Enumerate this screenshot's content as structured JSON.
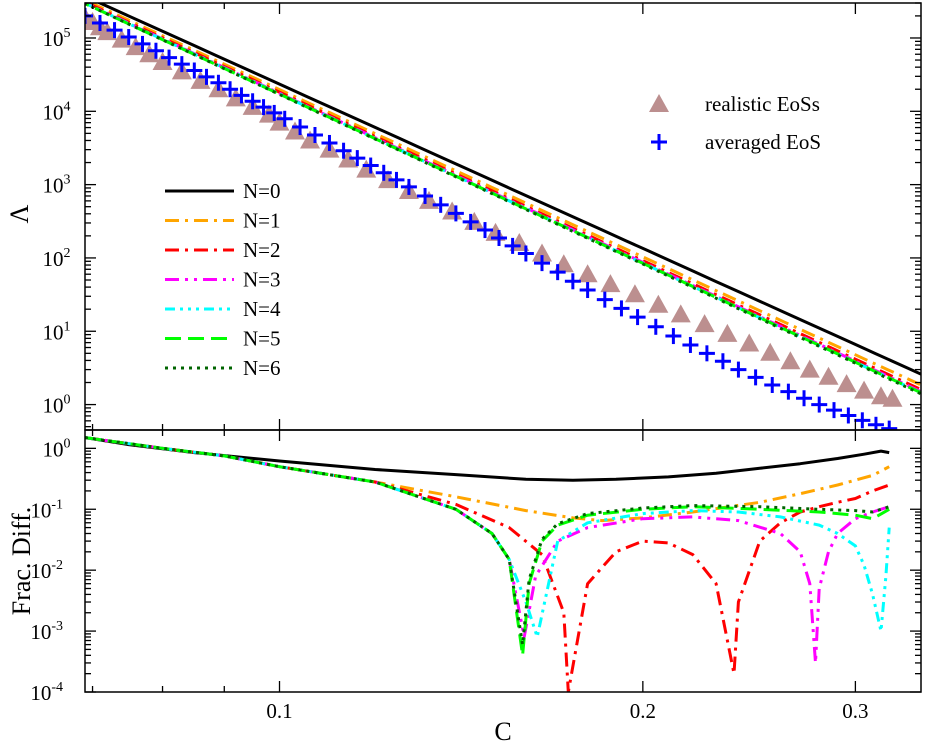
{
  "chart_data": [
    {
      "type": "line",
      "panel": "top",
      "xlabel": "",
      "ylabel": "Λ",
      "xscale": "log",
      "yscale": "log",
      "xlim": [
        0.069,
        0.34
      ],
      "ylim": [
        0.45,
        300000
      ],
      "y_ticks": [
        1,
        10,
        100,
        1000,
        10000,
        100000
      ],
      "y_tick_labels": [
        {
          "base": "10",
          "exp": "0"
        },
        {
          "base": "10",
          "exp": "1"
        },
        {
          "base": "10",
          "exp": "2"
        },
        {
          "base": "10",
          "exp": "3"
        },
        {
          "base": "10",
          "exp": "4"
        },
        {
          "base": "10",
          "exp": "5"
        }
      ],
      "x_ticks": [
        0.1,
        0.2,
        0.3
      ],
      "legend_position": "center-left",
      "fits": [
        {
          "name": "N=0",
          "color": "#000000",
          "dash": "",
          "width": 3,
          "x": [
            0.06,
            0.34
          ],
          "y": [
            1050000,
            2.6
          ]
        },
        {
          "name": "N=1",
          "color": "#ffa500",
          "dash": "14,6,3,6",
          "width": 3,
          "x": [
            0.06,
            0.34
          ],
          "y": [
            950000,
            1.85
          ]
        },
        {
          "name": "N=2",
          "color": "#ff0000",
          "dash": "14,6,3,6",
          "width": 3,
          "x": [
            0.06,
            0.34
          ],
          "y": [
            900000,
            1.6
          ]
        },
        {
          "name": "N=3",
          "color": "#ff00ff",
          "dash": "14,6,3,6,3,6",
          "width": 3,
          "x": [
            0.06,
            0.34
          ],
          "y": [
            880000,
            1.5
          ]
        },
        {
          "name": "N=4",
          "color": "#00ffff",
          "dash": "10,5,3,5,3,5,3,5",
          "width": 3,
          "x": [
            0.06,
            0.34
          ],
          "y": [
            870000,
            1.45
          ]
        },
        {
          "name": "N=5",
          "color": "#00ff00",
          "dash": "16,7",
          "width": 3,
          "x": [
            0.06,
            0.34
          ],
          "y": [
            860000,
            1.45
          ]
        },
        {
          "name": "N=6",
          "color": "#006400",
          "dash": "3,5",
          "width": 3,
          "x": [
            0.06,
            0.34
          ],
          "y": [
            860000,
            1.4
          ]
        }
      ],
      "points": [
        {
          "name": "realistic EoSs",
          "marker": "triangle",
          "color": "#bc8f8f",
          "x": [
            0.069,
            0.07,
            0.071,
            0.072,
            0.074,
            0.076,
            0.078,
            0.08,
            0.083,
            0.086,
            0.089,
            0.092,
            0.095,
            0.098,
            0.1,
            0.103,
            0.106,
            0.11,
            0.114,
            0.118,
            0.123,
            0.128,
            0.133,
            0.139,
            0.145,
            0.151,
            0.158,
            0.165,
            0.172,
            0.18,
            0.188,
            0.197,
            0.206,
            0.215,
            0.225,
            0.235,
            0.245,
            0.255,
            0.265,
            0.275,
            0.285,
            0.295,
            0.305,
            0.315,
            0.322
          ],
          "y": [
            190000,
            165000,
            140000,
            120000,
            95000,
            75000,
            60000,
            47000,
            35000,
            26000,
            20000,
            15000,
            11500,
            9000,
            7000,
            5300,
            4000,
            3000,
            2200,
            1600,
            1150,
            820,
            600,
            430,
            310,
            220,
            160,
            115,
            82,
            60,
            44,
            32,
            23,
            17,
            12.5,
            9.2,
            6.8,
            5.1,
            3.9,
            3.0,
            2.4,
            1.9,
            1.55,
            1.3,
            1.2
          ]
        },
        {
          "name": "averaged EoS",
          "marker": "plus",
          "color": "#0000ff",
          "x": [
            0.069,
            0.071,
            0.073,
            0.075,
            0.077,
            0.079,
            0.081,
            0.083,
            0.085,
            0.087,
            0.089,
            0.091,
            0.093,
            0.095,
            0.097,
            0.099,
            0.101,
            0.104,
            0.107,
            0.11,
            0.113,
            0.116,
            0.119,
            0.122,
            0.125,
            0.128,
            0.132,
            0.136,
            0.14,
            0.144,
            0.148,
            0.152,
            0.156,
            0.16,
            0.165,
            0.17,
            0.175,
            0.18,
            0.186,
            0.192,
            0.198,
            0.205,
            0.212,
            0.219,
            0.226,
            0.233,
            0.24,
            0.248,
            0.256,
            0.264,
            0.272,
            0.28,
            0.288,
            0.296,
            0.304,
            0.312,
            0.32
          ],
          "y": [
            200000,
            160000,
            128000,
            103000,
            83000,
            67000,
            54000,
            44000,
            36000,
            29500,
            24500,
            20000,
            16500,
            13700,
            11400,
            9500,
            7900,
            6100,
            4750,
            3700,
            2900,
            2300,
            1820,
            1450,
            1160,
            930,
            700,
            530,
            405,
            310,
            240,
            187,
            146,
            115,
            85,
            64,
            48,
            36.5,
            27,
            20.5,
            15.6,
            11.5,
            8.6,
            6.5,
            5.0,
            3.9,
            3.0,
            2.35,
            1.85,
            1.5,
            1.22,
            1.0,
            0.84,
            0.71,
            0.61,
            0.53,
            0.47
          ]
        }
      ],
      "legend_points": [
        "realistic EoSs",
        "averaged EoS"
      ],
      "legend_lines": [
        "N=0",
        "N=1",
        "N=2",
        "N=3",
        "N=4",
        "N=5",
        "N=6"
      ]
    },
    {
      "type": "line",
      "panel": "bottom",
      "xlabel": "C",
      "ylabel": "Frac. Diff.",
      "xscale": "log",
      "yscale": "log",
      "xlim": [
        0.069,
        0.34
      ],
      "ylim": [
        0.0001,
        2
      ],
      "x_ticks": [
        0.1,
        0.2,
        0.3
      ],
      "x_tick_labels": [
        "0.1",
        "0.2",
        "0.3"
      ],
      "y_ticks": [
        0.0001,
        0.001,
        0.01,
        0.1,
        1
      ],
      "y_tick_labels": [
        {
          "base": "10",
          "exp": "-4"
        },
        {
          "base": "10",
          "exp": "-3"
        },
        {
          "base": "10",
          "exp": "-2"
        },
        {
          "base": "10",
          "exp": "-1"
        },
        {
          "base": "10",
          "exp": "0"
        }
      ],
      "series": [
        {
          "name": "N=0",
          "color": "#000000",
          "dash": "",
          "width": 3,
          "x": [
            0.069,
            0.075,
            0.085,
            0.1,
            0.12,
            0.14,
            0.16,
            0.175,
            0.19,
            0.21,
            0.23,
            0.25,
            0.27,
            0.29,
            0.305,
            0.315,
            0.32
          ],
          "y": [
            1.5,
            1.15,
            0.85,
            0.62,
            0.45,
            0.37,
            0.31,
            0.3,
            0.31,
            0.34,
            0.39,
            0.47,
            0.56,
            0.68,
            0.8,
            0.9,
            0.85
          ]
        },
        {
          "name": "N=1",
          "color": "#ffa500",
          "dash": "14,6,3,6",
          "width": 3,
          "x": [
            0.069,
            0.08,
            0.09,
            0.1,
            0.12,
            0.14,
            0.16,
            0.175,
            0.185,
            0.2,
            0.22,
            0.25,
            0.27,
            0.29,
            0.31,
            0.32
          ],
          "y": [
            1.5,
            1.0,
            0.75,
            0.5,
            0.28,
            0.16,
            0.095,
            0.072,
            0.065,
            0.072,
            0.09,
            0.13,
            0.18,
            0.25,
            0.36,
            0.5
          ]
        },
        {
          "name": "N=2",
          "color": "#ff0000",
          "dash": "14,6,3,6",
          "width": 3,
          "x": [
            0.069,
            0.08,
            0.09,
            0.1,
            0.12,
            0.14,
            0.155,
            0.165,
            0.172,
            0.1735,
            0.18,
            0.19,
            0.2,
            0.21,
            0.22,
            0.23,
            0.238,
            0.24,
            0.25,
            0.26,
            0.27,
            0.28,
            0.29,
            0.3,
            0.31,
            0.32
          ],
          "y": [
            1.5,
            1.0,
            0.75,
            0.5,
            0.28,
            0.12,
            0.05,
            0.018,
            0.002,
            0.0001,
            0.006,
            0.02,
            0.03,
            0.028,
            0.018,
            0.006,
            0.0002,
            0.003,
            0.03,
            0.06,
            0.09,
            0.11,
            0.13,
            0.15,
            0.2,
            0.25
          ]
        },
        {
          "name": "N=3",
          "color": "#ff00ff",
          "dash": "14,6,3,6,3,6",
          "width": 3,
          "x": [
            0.069,
            0.08,
            0.09,
            0.1,
            0.12,
            0.14,
            0.15,
            0.155,
            0.1595,
            0.163,
            0.17,
            0.18,
            0.2,
            0.22,
            0.24,
            0.26,
            0.27,
            0.275,
            0.278,
            0.28,
            0.285,
            0.29,
            0.3,
            0.31,
            0.32
          ],
          "y": [
            1.5,
            1.0,
            0.75,
            0.5,
            0.28,
            0.1,
            0.04,
            0.015,
            0.0008,
            0.008,
            0.03,
            0.05,
            0.07,
            0.075,
            0.065,
            0.04,
            0.02,
            0.006,
            0.0003,
            0.005,
            0.02,
            0.04,
            0.07,
            0.09,
            0.11
          ]
        },
        {
          "name": "N=4",
          "color": "#00ffff",
          "dash": "10,5,3,5,3,5,3,5",
          "width": 3,
          "x": [
            0.069,
            0.08,
            0.09,
            0.1,
            0.12,
            0.14,
            0.15,
            0.155,
            0.16,
            0.1635,
            0.17,
            0.18,
            0.2,
            0.22,
            0.24,
            0.26,
            0.28,
            0.29,
            0.3,
            0.305,
            0.31,
            0.315,
            0.318,
            0.32
          ],
          "y": [
            1.5,
            1.0,
            0.75,
            0.5,
            0.28,
            0.1,
            0.04,
            0.015,
            0.003,
            0.0008,
            0.03,
            0.06,
            0.085,
            0.095,
            0.09,
            0.075,
            0.055,
            0.04,
            0.025,
            0.012,
            0.004,
            0.001,
            0.008,
            0.05
          ]
        },
        {
          "name": "N=5",
          "color": "#00ff00",
          "dash": "16,7",
          "width": 3,
          "x": [
            0.069,
            0.08,
            0.09,
            0.1,
            0.12,
            0.14,
            0.15,
            0.155,
            0.159,
            0.161,
            0.165,
            0.17,
            0.18,
            0.2,
            0.22,
            0.25,
            0.28,
            0.3,
            0.31,
            0.32
          ],
          "y": [
            1.5,
            1.0,
            0.75,
            0.5,
            0.28,
            0.1,
            0.04,
            0.015,
            0.0004,
            0.006,
            0.03,
            0.055,
            0.08,
            0.1,
            0.11,
            0.1,
            0.09,
            0.08,
            0.07,
            0.1
          ]
        },
        {
          "name": "N=6",
          "color": "#006400",
          "dash": "3,5",
          "width": 3,
          "x": [
            0.069,
            0.08,
            0.09,
            0.1,
            0.12,
            0.14,
            0.15,
            0.155,
            0.159,
            0.161,
            0.165,
            0.17,
            0.18,
            0.2,
            0.22,
            0.25,
            0.28,
            0.3,
            0.31,
            0.32
          ],
          "y": [
            1.5,
            1.0,
            0.75,
            0.5,
            0.28,
            0.1,
            0.04,
            0.015,
            0.0006,
            0.007,
            0.032,
            0.058,
            0.085,
            0.105,
            0.115,
            0.11,
            0.1,
            0.095,
            0.09,
            0.11
          ]
        }
      ]
    }
  ]
}
